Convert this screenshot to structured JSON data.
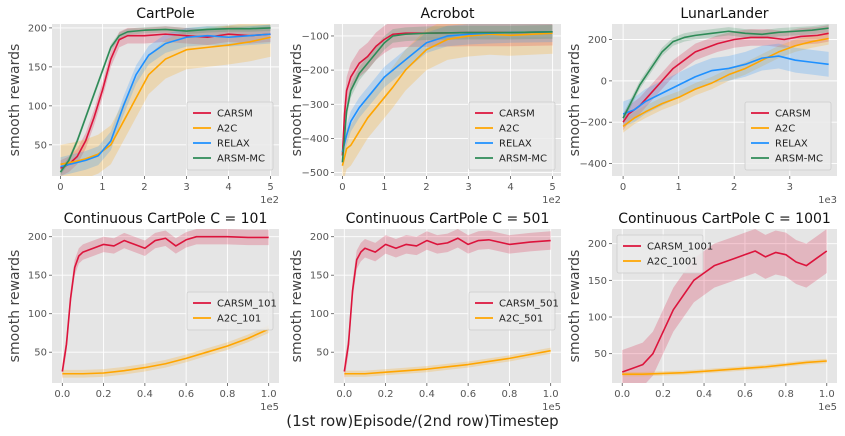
{
  "figure": {
    "supxlabel": "(1st row)Episode/(2nd row)Timestep",
    "ylabel": "smooth rewards"
  },
  "colors": {
    "panel_bg": "#e5e5e5",
    "grid": "#ffffff",
    "CARSM": "#dc143c",
    "A2C": "#ffa500",
    "RELAX": "#1e90ff",
    "ARSM-MC": "#2e8b57"
  },
  "chart_data": [
    {
      "type": "line",
      "title": "CartPole",
      "ylabel": "smooth rewards",
      "xlim": [
        -0.2,
        5.2
      ],
      "ylim": [
        10,
        205
      ],
      "xticks": [
        0,
        1,
        2,
        3,
        4,
        5
      ],
      "xtick_labels": [
        "0",
        "1",
        "2",
        "3",
        "4",
        "5"
      ],
      "x_offset_text": "1e2",
      "yticks": [
        50,
        100,
        150,
        200
      ],
      "ytick_labels": [
        "50",
        "100",
        "150",
        "200"
      ],
      "legend": "lower-right",
      "grid": true,
      "series": [
        {
          "name": "CARSM",
          "color": "#dc143c",
          "x": [
            0,
            0.2,
            0.4,
            0.6,
            0.8,
            1.0,
            1.2,
            1.4,
            1.6,
            1.8,
            2.0,
            2.5,
            3.0,
            3.5,
            4.0,
            4.5,
            5.0
          ],
          "y": [
            20,
            25,
            35,
            55,
            85,
            120,
            160,
            185,
            190,
            190,
            190,
            192,
            190,
            188,
            192,
            190,
            192
          ],
          "band": 10
        },
        {
          "name": "A2C",
          "color": "#ffa500",
          "x": [
            0,
            0.3,
            0.6,
            0.9,
            1.2,
            1.5,
            1.8,
            2.1,
            2.5,
            3.0,
            3.5,
            4.0,
            4.5,
            5.0
          ],
          "y": [
            25,
            28,
            32,
            38,
            50,
            80,
            110,
            140,
            160,
            172,
            175,
            178,
            182,
            188
          ],
          "band": 25
        },
        {
          "name": "RELAX",
          "color": "#1e90ff",
          "x": [
            0,
            0.3,
            0.6,
            0.9,
            1.2,
            1.5,
            1.8,
            2.1,
            2.5,
            3.0,
            3.5,
            4.0,
            4.5,
            5.0
          ],
          "y": [
            22,
            26,
            30,
            36,
            55,
            100,
            140,
            165,
            180,
            188,
            190,
            188,
            190,
            192
          ],
          "band": 12
        },
        {
          "name": "ARSM-MC",
          "color": "#2e8b57",
          "x": [
            0,
            0.2,
            0.4,
            0.6,
            0.8,
            1.0,
            1.2,
            1.4,
            1.6,
            1.8,
            2.0,
            2.5,
            3.0,
            3.5,
            4.0,
            4.5,
            5.0
          ],
          "y": [
            15,
            30,
            55,
            85,
            115,
            145,
            175,
            190,
            195,
            196,
            197,
            198,
            196,
            198,
            199,
            199,
            200
          ],
          "band": 4
        }
      ]
    },
    {
      "type": "line",
      "title": "Acrobot",
      "ylabel": "smooth rewards",
      "xlim": [
        -0.2,
        5.2
      ],
      "ylim": [
        -510,
        -65
      ],
      "xticks": [
        0,
        1,
        2,
        3,
        4,
        5
      ],
      "xtick_labels": [
        "0",
        "1",
        "2",
        "3",
        "4",
        "5"
      ],
      "x_offset_text": "1e2",
      "yticks": [
        -500,
        -400,
        -300,
        -200,
        -100
      ],
      "ytick_labels": [
        "−500",
        "−400",
        "−300",
        "−200",
        "−100"
      ],
      "legend": "lower-right",
      "grid": true,
      "series": [
        {
          "name": "CARSM",
          "color": "#dc143c",
          "x": [
            0,
            0.05,
            0.1,
            0.2,
            0.3,
            0.4,
            0.6,
            0.8,
            1.0,
            1.2,
            1.5,
            2.0,
            3.0,
            4.0,
            5.0
          ],
          "y": [
            -450,
            -330,
            -260,
            -220,
            -200,
            -180,
            -160,
            -130,
            -110,
            -95,
            -92,
            -92,
            -90,
            -90,
            -88
          ],
          "band": 40
        },
        {
          "name": "A2C",
          "color": "#ffa500",
          "x": [
            0,
            0.1,
            0.2,
            0.4,
            0.6,
            0.8,
            1.0,
            1.2,
            1.5,
            2.0,
            2.5,
            3.0,
            3.5,
            4.0,
            5.0
          ],
          "y": [
            -480,
            -430,
            -420,
            -380,
            -340,
            -310,
            -280,
            -250,
            -200,
            -140,
            -110,
            -100,
            -95,
            -98,
            -92
          ],
          "band": 60
        },
        {
          "name": "RELAX",
          "color": "#1e90ff",
          "x": [
            0,
            0.1,
            0.2,
            0.4,
            0.6,
            0.8,
            1.0,
            1.2,
            1.5,
            2.0,
            2.5,
            3.0,
            3.5,
            4.0,
            5.0
          ],
          "y": [
            -440,
            -390,
            -350,
            -310,
            -280,
            -250,
            -220,
            -200,
            -170,
            -120,
            -100,
            -95,
            -92,
            -90,
            -88
          ],
          "band": 30
        },
        {
          "name": "ARSM-MC",
          "color": "#2e8b57",
          "x": [
            0,
            0.1,
            0.2,
            0.4,
            0.6,
            0.8,
            1.0,
            1.2,
            1.5,
            2.0,
            3.0,
            4.0,
            5.0
          ],
          "y": [
            -470,
            -320,
            -260,
            -210,
            -180,
            -150,
            -120,
            -100,
            -95,
            -92,
            -90,
            -90,
            -88
          ],
          "band": 20
        }
      ]
    },
    {
      "type": "line",
      "title": "LunarLander",
      "ylabel": "smooth rewards",
      "xlim": [
        -0.2,
        3.85
      ],
      "ylim": [
        -460,
        275
      ],
      "xticks": [
        0,
        1,
        2,
        3
      ],
      "xtick_labels": [
        "0",
        "1",
        "2",
        "3"
      ],
      "x_offset_text": "1e3",
      "yticks": [
        -400,
        -200,
        0,
        200
      ],
      "ytick_labels": [
        "−400",
        "−200",
        "0",
        "200"
      ],
      "legend": "lower-right",
      "grid": true,
      "series": [
        {
          "name": "CARSM",
          "color": "#dc143c",
          "x": [
            0,
            0.1,
            0.3,
            0.5,
            0.7,
            0.9,
            1.1,
            1.3,
            1.5,
            1.7,
            2.0,
            2.3,
            2.6,
            2.9,
            3.2,
            3.5,
            3.7
          ],
          "y": [
            -200,
            -160,
            -120,
            -60,
            0,
            60,
            100,
            140,
            160,
            180,
            200,
            210,
            210,
            200,
            215,
            220,
            230
          ],
          "band": 40
        },
        {
          "name": "A2C",
          "color": "#ffa500",
          "x": [
            0,
            0.2,
            0.4,
            0.7,
            1.0,
            1.3,
            1.6,
            1.9,
            2.2,
            2.5,
            2.8,
            3.1,
            3.4,
            3.7
          ],
          "y": [
            -220,
            -180,
            -150,
            -110,
            -80,
            -40,
            -10,
            30,
            60,
            100,
            140,
            170,
            190,
            205
          ],
          "band": 30
        },
        {
          "name": "RELAX",
          "color": "#1e90ff",
          "x": [
            0,
            0.2,
            0.4,
            0.7,
            1.0,
            1.3,
            1.6,
            1.9,
            2.2,
            2.5,
            2.8,
            3.1,
            3.4,
            3.7
          ],
          "y": [
            -160,
            -140,
            -100,
            -60,
            -20,
            20,
            50,
            60,
            80,
            110,
            120,
            100,
            90,
            80
          ],
          "band": 60
        },
        {
          "name": "ARSM-MC",
          "color": "#2e8b57",
          "x": [
            0,
            0.15,
            0.3,
            0.5,
            0.7,
            0.9,
            1.1,
            1.3,
            1.6,
            1.9,
            2.2,
            2.5,
            2.8,
            3.1,
            3.4,
            3.7
          ],
          "y": [
            -180,
            -100,
            -20,
            60,
            140,
            190,
            210,
            220,
            230,
            240,
            230,
            225,
            235,
            240,
            245,
            255
          ],
          "band": 20
        }
      ]
    },
    {
      "type": "line",
      "title": "Continuous CartPole C = 101",
      "ylabel": "smooth rewards",
      "xlim": [
        -0.05,
        1.05
      ],
      "ylim": [
        10,
        210
      ],
      "xticks": [
        0,
        0.2,
        0.4,
        0.6,
        0.8,
        1.0
      ],
      "xtick_labels": [
        "0.0",
        "0.2",
        "0.4",
        "0.6",
        "0.8",
        "1.0"
      ],
      "x_offset_text": "1e5",
      "yticks": [
        50,
        100,
        150,
        200
      ],
      "ytick_labels": [
        "50",
        "100",
        "150",
        "200"
      ],
      "legend": "center-right",
      "grid": true,
      "series": [
        {
          "name": "CARSM_101",
          "color": "#dc143c",
          "x": [
            0,
            0.02,
            0.04,
            0.06,
            0.08,
            0.1,
            0.15,
            0.2,
            0.25,
            0.3,
            0.35,
            0.4,
            0.45,
            0.5,
            0.55,
            0.6,
            0.65,
            0.7,
            0.8,
            0.9,
            1.0
          ],
          "y": [
            25,
            60,
            120,
            160,
            175,
            180,
            185,
            190,
            188,
            195,
            190,
            185,
            195,
            198,
            188,
            196,
            200,
            200,
            200,
            199,
            199
          ],
          "band": 10
        },
        {
          "name": "A2C_101",
          "color": "#ffa500",
          "x": [
            0,
            0.1,
            0.2,
            0.3,
            0.4,
            0.5,
            0.6,
            0.7,
            0.8,
            0.9,
            1.0
          ],
          "y": [
            22,
            22,
            23,
            26,
            30,
            35,
            42,
            50,
            58,
            68,
            80
          ],
          "band": 5
        }
      ]
    },
    {
      "type": "line",
      "title": "Continuous CartPole C = 501",
      "ylabel": "smooth rewards",
      "xlim": [
        -0.05,
        1.05
      ],
      "ylim": [
        10,
        210
      ],
      "xticks": [
        0,
        0.2,
        0.4,
        0.6,
        0.8,
        1.0
      ],
      "xtick_labels": [
        "0.0",
        "0.2",
        "0.4",
        "0.6",
        "0.8",
        "1.0"
      ],
      "x_offset_text": "1e5",
      "yticks": [
        50,
        100,
        150,
        200
      ],
      "ytick_labels": [
        "50",
        "100",
        "150",
        "200"
      ],
      "legend": "center-right",
      "grid": true,
      "series": [
        {
          "name": "CARSM_501",
          "color": "#dc143c",
          "x": [
            0,
            0.02,
            0.04,
            0.06,
            0.08,
            0.1,
            0.15,
            0.2,
            0.25,
            0.3,
            0.35,
            0.4,
            0.45,
            0.5,
            0.55,
            0.6,
            0.65,
            0.7,
            0.8,
            0.9,
            1.0
          ],
          "y": [
            25,
            60,
            130,
            170,
            180,
            185,
            180,
            190,
            185,
            190,
            188,
            195,
            190,
            192,
            198,
            190,
            195,
            196,
            190,
            193,
            195
          ],
          "band": 12
        },
        {
          "name": "A2C_501",
          "color": "#ffa500",
          "x": [
            0,
            0.1,
            0.2,
            0.3,
            0.4,
            0.5,
            0.6,
            0.7,
            0.8,
            0.9,
            1.0
          ],
          "y": [
            22,
            22,
            24,
            26,
            28,
            31,
            34,
            38,
            42,
            47,
            52
          ],
          "band": 4
        }
      ]
    },
    {
      "type": "line",
      "title": "Continuous CartPole C = 1001",
      "ylabel": "smooth rewards",
      "xlim": [
        -0.05,
        1.05
      ],
      "ylim": [
        10,
        220
      ],
      "xticks": [
        0,
        0.2,
        0.4,
        0.6,
        0.8,
        1.0
      ],
      "xtick_labels": [
        "0.0",
        "0.2",
        "0.4",
        "0.6",
        "0.8",
        "1.0"
      ],
      "x_offset_text": "1e5",
      "yticks": [
        50,
        100,
        150,
        200
      ],
      "ytick_labels": [
        "50",
        "100",
        "150",
        "200"
      ],
      "legend": "upper-left",
      "grid": true,
      "series": [
        {
          "name": "CARSM_1001",
          "color": "#dc143c",
          "x": [
            0,
            0.05,
            0.1,
            0.15,
            0.2,
            0.25,
            0.3,
            0.35,
            0.4,
            0.45,
            0.5,
            0.55,
            0.6,
            0.65,
            0.7,
            0.75,
            0.8,
            0.85,
            0.9,
            0.95,
            1.0
          ],
          "y": [
            25,
            30,
            35,
            50,
            80,
            110,
            130,
            150,
            160,
            170,
            175,
            180,
            185,
            190,
            182,
            188,
            185,
            175,
            170,
            180,
            190
          ],
          "band": 30
        },
        {
          "name": "A2C_1001",
          "color": "#ffa500",
          "x": [
            0,
            0.1,
            0.2,
            0.3,
            0.4,
            0.5,
            0.6,
            0.7,
            0.8,
            0.9,
            1.0
          ],
          "y": [
            22,
            22,
            23,
            24,
            26,
            28,
            30,
            32,
            35,
            38,
            40
          ],
          "band": 3
        }
      ]
    }
  ]
}
